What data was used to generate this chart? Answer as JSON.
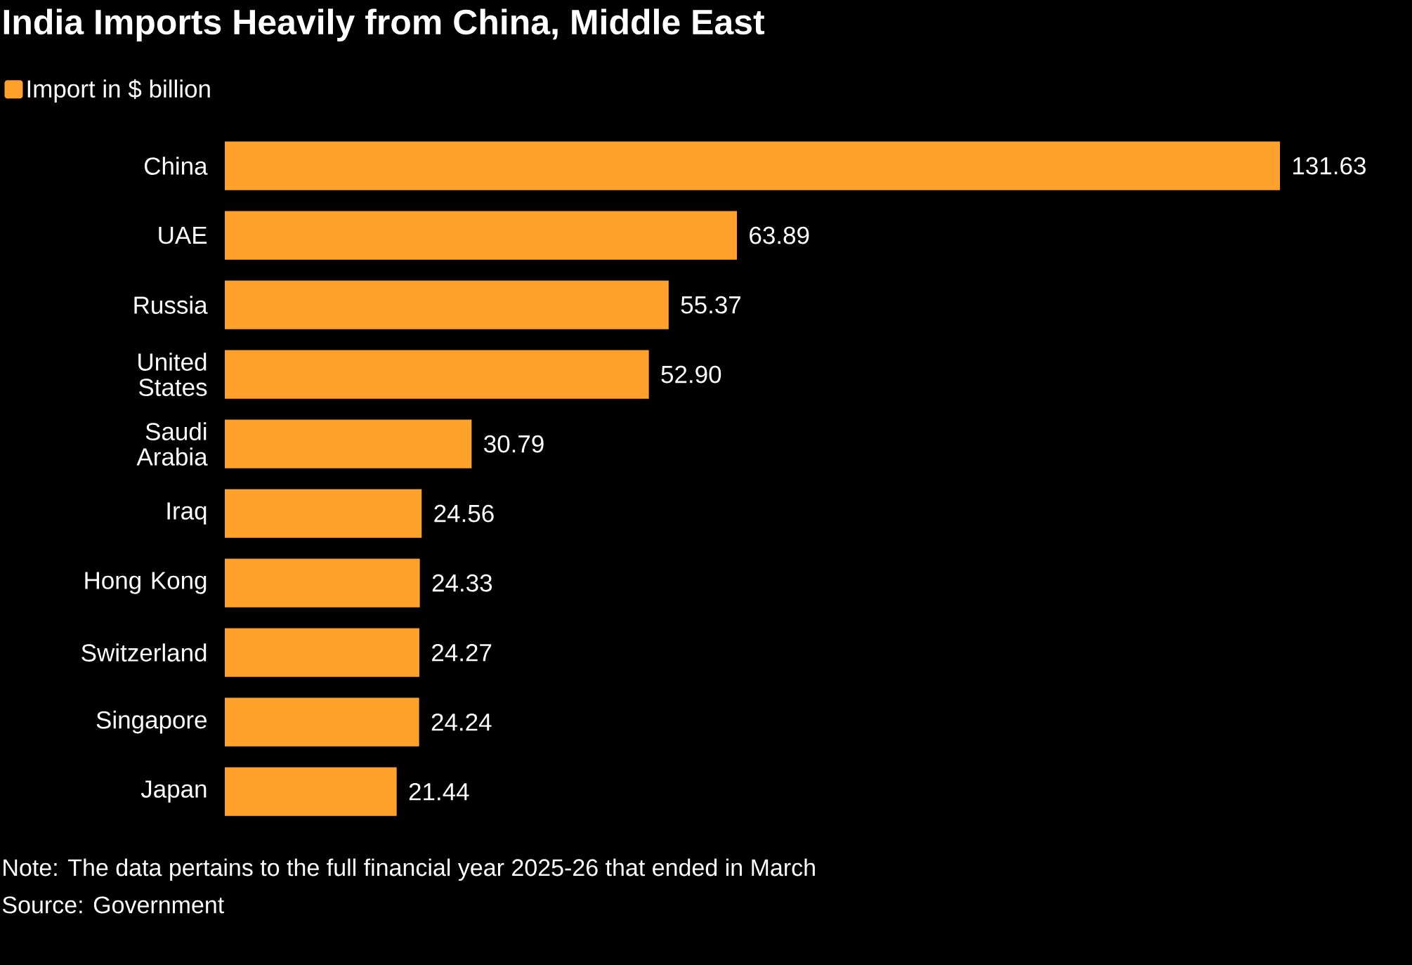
{
  "chart_data": {
    "type": "bar",
    "orientation": "horizontal",
    "title": "India Imports Heavily from China, Middle East",
    "categories": [
      "China",
      "UAE",
      "Russia",
      "United States",
      "Saudi Arabia",
      "Iraq",
      "Hong Kong",
      "Switzerland",
      "Singapore",
      "Japan"
    ],
    "series": [
      {
        "name": "Import in $ billion",
        "color": "#ffa12b",
        "values": [
          131.63,
          63.89,
          55.37,
          52.9,
          30.79,
          24.56,
          24.33,
          24.27,
          24.24,
          21.44
        ],
        "value_labels": [
          "131.63",
          "63.89",
          "55.37",
          "52.90",
          "30.79",
          "24.56",
          "24.33",
          "24.27",
          "24.24",
          "21.44"
        ]
      }
    ],
    "legend": "top left",
    "grid": false,
    "annotations": [
      "Note: The data pertains to the full financial year 2025-26 that ended in March",
      "Source: Government"
    ]
  }
}
